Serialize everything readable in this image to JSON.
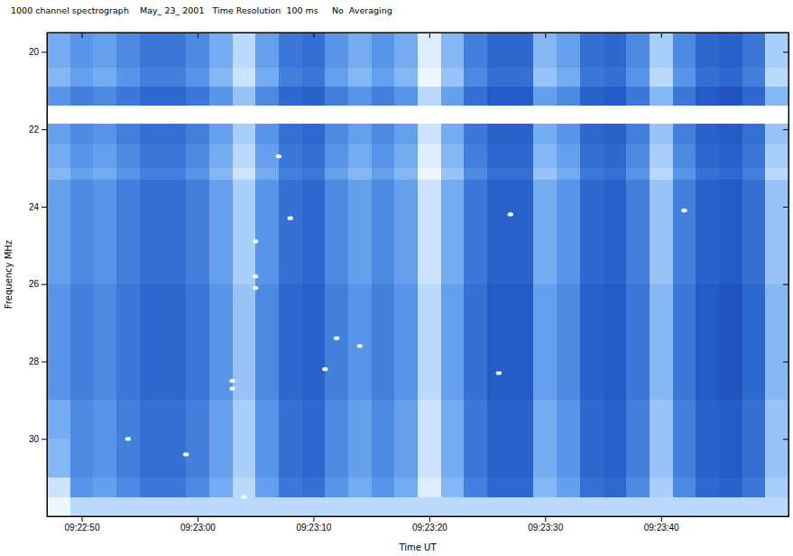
{
  "chart_data": {
    "type": "heatmap",
    "title": "1000 channel spectrograph    May_ 23_ 2001   Time Resolution  100 ms     No  Averaging",
    "x_label": "Time UT",
    "y_label": "Frequency MHz",
    "xlim": [
      "09:22:47",
      "09:23:51"
    ],
    "xticks": [
      "09:22:50",
      "09:23:00",
      "09:23:10",
      "09:23:20",
      "09:23:30",
      "09:23:40"
    ],
    "ylim": [
      19.5,
      32
    ],
    "yticks": [
      20,
      22,
      24,
      26,
      28,
      30
    ],
    "zlim": [
      0,
      1
    ],
    "x_bins": [
      "09:22:47",
      "09:22:49",
      "09:22:51",
      "09:22:53",
      "09:22:55",
      "09:22:57",
      "09:22:59",
      "09:23:01",
      "09:23:03",
      "09:23:05",
      "09:23:07",
      "09:23:09",
      "09:23:11",
      "09:23:13",
      "09:23:15",
      "09:23:17",
      "09:23:19",
      "09:23:21",
      "09:23:23",
      "09:23:25",
      "09:23:27",
      "09:23:29",
      "09:23:31",
      "09:23:33",
      "09:23:35",
      "09:23:37",
      "09:23:39",
      "09:23:41",
      "09:23:43",
      "09:23:45",
      "09:23:47",
      "09:23:49",
      "09:23:51"
    ],
    "y_bins": [
      19.5,
      20.4,
      20.9,
      21.4,
      21.85,
      22.4,
      23.0,
      23.3,
      24,
      25,
      26,
      27,
      28,
      29,
      30,
      31,
      31.5,
      32
    ],
    "cells": [
      [
        0.6,
        0.5,
        0.55,
        0.45,
        0.35,
        0.35,
        0.45,
        0.6,
        0.8,
        0.55,
        0.35,
        0.3,
        0.5,
        0.6,
        0.5,
        0.6,
        0.9,
        0.65,
        0.4,
        0.25,
        0.25,
        0.65,
        0.55,
        0.3,
        0.25,
        0.45,
        0.75,
        0.45,
        0.25,
        0.2,
        0.35,
        0.75
      ],
      [
        0.65,
        0.55,
        0.6,
        0.5,
        0.4,
        0.4,
        0.5,
        0.65,
        0.85,
        0.6,
        0.4,
        0.35,
        0.55,
        0.65,
        0.55,
        0.65,
        0.95,
        0.7,
        0.45,
        0.3,
        0.3,
        0.7,
        0.6,
        0.35,
        0.3,
        0.5,
        0.8,
        0.5,
        0.3,
        0.25,
        0.4,
        0.8
      ],
      [
        0.5,
        0.4,
        0.45,
        0.35,
        0.25,
        0.25,
        0.35,
        0.5,
        0.7,
        0.45,
        0.25,
        0.2,
        0.4,
        0.5,
        0.4,
        0.5,
        0.8,
        0.55,
        0.3,
        0.15,
        0.15,
        0.55,
        0.45,
        0.2,
        0.15,
        0.35,
        0.65,
        0.35,
        0.15,
        0.1,
        0.25,
        0.65
      ],
      [
        1,
        1,
        1,
        1,
        1,
        1,
        1,
        1,
        1,
        1,
        1,
        1,
        1,
        1,
        1,
        1,
        1,
        1,
        1,
        1,
        1,
        1,
        1,
        1,
        1,
        1,
        1,
        1,
        1,
        1,
        1,
        1
      ],
      [
        0.55,
        0.45,
        0.5,
        0.4,
        0.3,
        0.3,
        0.4,
        0.55,
        0.75,
        0.5,
        0.3,
        0.25,
        0.45,
        0.55,
        0.45,
        0.55,
        0.85,
        0.6,
        0.35,
        0.2,
        0.2,
        0.6,
        0.5,
        0.25,
        0.2,
        0.4,
        0.7,
        0.4,
        0.2,
        0.15,
        0.3,
        0.7
      ],
      [
        0.6,
        0.5,
        0.55,
        0.45,
        0.35,
        0.35,
        0.45,
        0.6,
        0.8,
        0.55,
        0.35,
        0.3,
        0.5,
        0.6,
        0.5,
        0.6,
        0.9,
        0.65,
        0.4,
        0.25,
        0.25,
        0.65,
        0.55,
        0.3,
        0.25,
        0.45,
        0.75,
        0.45,
        0.25,
        0.2,
        0.35,
        0.75
      ],
      [
        0.65,
        0.55,
        0.6,
        0.5,
        0.4,
        0.4,
        0.5,
        0.65,
        0.85,
        0.6,
        0.4,
        0.35,
        0.55,
        0.65,
        0.55,
        0.65,
        0.95,
        0.7,
        0.45,
        0.3,
        0.3,
        0.7,
        0.6,
        0.35,
        0.3,
        0.5,
        0.8,
        0.5,
        0.3,
        0.25,
        0.4,
        0.8
      ],
      [
        0.55,
        0.45,
        0.5,
        0.4,
        0.3,
        0.3,
        0.4,
        0.55,
        0.75,
        0.5,
        0.3,
        0.25,
        0.45,
        0.55,
        0.45,
        0.55,
        0.85,
        0.6,
        0.35,
        0.2,
        0.2,
        0.6,
        0.5,
        0.25,
        0.2,
        0.4,
        0.7,
        0.4,
        0.2,
        0.15,
        0.3,
        0.7
      ],
      [
        0.55,
        0.45,
        0.5,
        0.4,
        0.3,
        0.3,
        0.4,
        0.55,
        0.75,
        0.5,
        0.3,
        0.25,
        0.45,
        0.55,
        0.45,
        0.55,
        0.85,
        0.6,
        0.35,
        0.2,
        0.2,
        0.6,
        0.5,
        0.25,
        0.2,
        0.4,
        0.7,
        0.4,
        0.2,
        0.15,
        0.3,
        0.7
      ],
      [
        0.55,
        0.45,
        0.5,
        0.4,
        0.3,
        0.3,
        0.4,
        0.55,
        0.75,
        0.5,
        0.3,
        0.25,
        0.45,
        0.55,
        0.45,
        0.55,
        0.85,
        0.6,
        0.35,
        0.2,
        0.2,
        0.6,
        0.5,
        0.25,
        0.2,
        0.4,
        0.7,
        0.4,
        0.2,
        0.15,
        0.3,
        0.7
      ],
      [
        0.5,
        0.4,
        0.45,
        0.35,
        0.25,
        0.25,
        0.35,
        0.5,
        0.7,
        0.45,
        0.25,
        0.2,
        0.4,
        0.5,
        0.4,
        0.5,
        0.8,
        0.55,
        0.3,
        0.15,
        0.15,
        0.55,
        0.45,
        0.2,
        0.15,
        0.35,
        0.65,
        0.35,
        0.15,
        0.1,
        0.25,
        0.65
      ],
      [
        0.5,
        0.4,
        0.45,
        0.35,
        0.25,
        0.25,
        0.35,
        0.5,
        0.7,
        0.45,
        0.25,
        0.2,
        0.4,
        0.5,
        0.4,
        0.5,
        0.8,
        0.55,
        0.3,
        0.15,
        0.15,
        0.55,
        0.45,
        0.2,
        0.15,
        0.35,
        0.65,
        0.35,
        0.15,
        0.1,
        0.25,
        0.65
      ],
      [
        0.5,
        0.4,
        0.45,
        0.35,
        0.25,
        0.25,
        0.35,
        0.5,
        0.7,
        0.45,
        0.25,
        0.2,
        0.4,
        0.5,
        0.4,
        0.5,
        0.8,
        0.55,
        0.3,
        0.15,
        0.15,
        0.55,
        0.45,
        0.2,
        0.15,
        0.35,
        0.65,
        0.35,
        0.15,
        0.1,
        0.25,
        0.65
      ],
      [
        0.6,
        0.45,
        0.5,
        0.4,
        0.3,
        0.3,
        0.4,
        0.55,
        0.75,
        0.5,
        0.3,
        0.25,
        0.45,
        0.55,
        0.45,
        0.55,
        0.85,
        0.6,
        0.35,
        0.2,
        0.2,
        0.6,
        0.5,
        0.25,
        0.2,
        0.4,
        0.7,
        0.4,
        0.2,
        0.15,
        0.3,
        0.7
      ],
      [
        0.65,
        0.45,
        0.5,
        0.4,
        0.3,
        0.3,
        0.4,
        0.55,
        0.75,
        0.5,
        0.3,
        0.25,
        0.45,
        0.55,
        0.45,
        0.55,
        0.85,
        0.6,
        0.35,
        0.2,
        0.2,
        0.6,
        0.5,
        0.25,
        0.2,
        0.4,
        0.7,
        0.4,
        0.2,
        0.15,
        0.3,
        0.7
      ],
      [
        0.85,
        0.5,
        0.55,
        0.45,
        0.35,
        0.35,
        0.45,
        0.6,
        0.8,
        0.55,
        0.35,
        0.3,
        0.5,
        0.6,
        0.5,
        0.6,
        0.9,
        0.65,
        0.4,
        0.25,
        0.25,
        0.65,
        0.55,
        0.3,
        0.25,
        0.45,
        0.75,
        0.45,
        0.25,
        0.2,
        0.35,
        0.75
      ],
      [
        0.95,
        0.8,
        0.8,
        0.8,
        0.8,
        0.8,
        0.8,
        0.8,
        0.8,
        0.8,
        0.8,
        0.8,
        0.8,
        0.8,
        0.8,
        0.8,
        0.8,
        0.8,
        0.8,
        0.8,
        0.8,
        0.8,
        0.8,
        0.8,
        0.8,
        0.8,
        0.8,
        0.8,
        0.8,
        0.8,
        0.8,
        0.8
      ]
    ],
    "spots": {
      "x": [
        "09:22:54",
        "09:22:59",
        "09:23:03",
        "09:23:03",
        "09:23:04",
        "09:23:05",
        "09:23:05",
        "09:23:05",
        "09:23:07",
        "09:23:08",
        "09:23:11",
        "09:23:12",
        "09:23:14",
        "09:23:26",
        "09:23:27",
        "09:23:42"
      ],
      "y": [
        30.0,
        30.4,
        28.7,
        28.5,
        31.5,
        25.8,
        26.1,
        24.9,
        22.7,
        24.3,
        28.2,
        27.4,
        27.6,
        28.3,
        24.2,
        24.1
      ]
    }
  }
}
